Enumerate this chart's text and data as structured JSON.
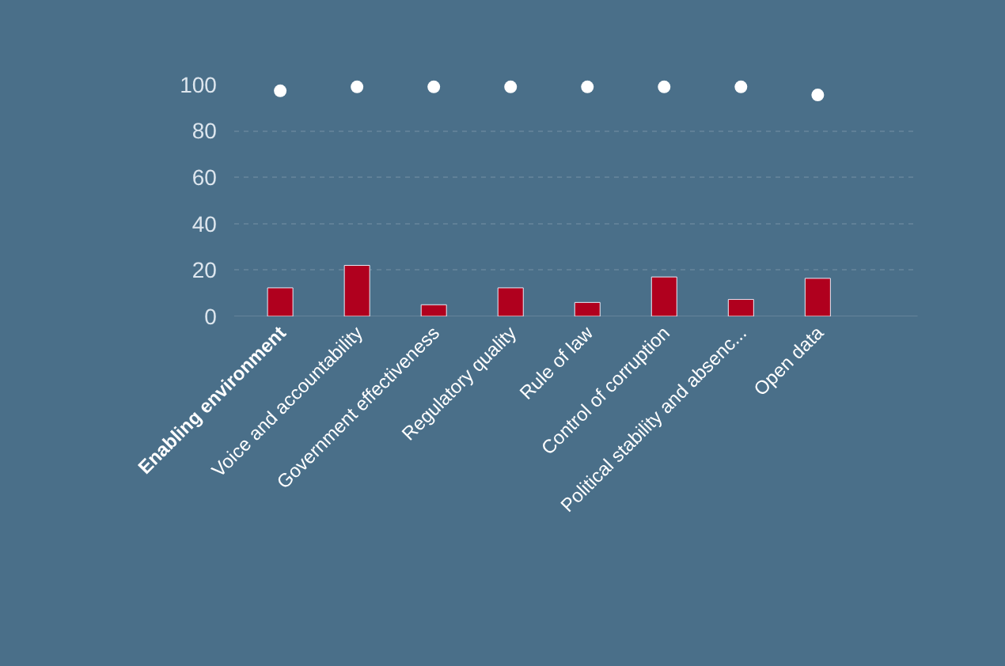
{
  "chart_data": {
    "type": "bar",
    "categories": [
      "Enabling environment",
      "Voice and accountability",
      "Government effectiveness",
      "Regulatory quality",
      "Rule of law",
      "Control of corruption",
      "Political stability and absenc...",
      "Open data"
    ],
    "series": [
      {
        "color": "#b0001e",
        "values": [
          12.3,
          22,
          5,
          12.3,
          6,
          17,
          7.3,
          16.4
        ]
      },
      {
        "type": "scatter",
        "color": "#ffffff",
        "marker": "circle",
        "values": [
          97.3,
          99,
          99,
          99,
          99,
          99,
          99,
          95.5
        ]
      }
    ],
    "ylim": [
      0,
      100
    ],
    "yticks": [
      0,
      20,
      40,
      60,
      80,
      100
    ],
    "grid": "y"
  }
}
